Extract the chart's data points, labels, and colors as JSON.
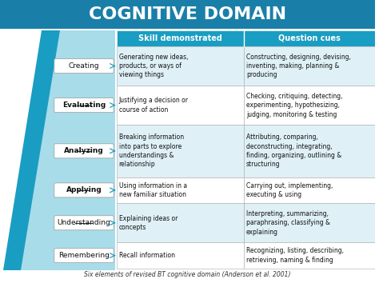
{
  "title": "COGNITIVE DOMAIN",
  "title_bg": "#1a7fa8",
  "title_color": "#ffffff",
  "header_bg": "#1a9dc2",
  "header_color": "#ffffff",
  "header_col1": "Skill demonstrated",
  "header_col2": "Question cues",
  "pyramid_color_dark": "#1a9dc2",
  "pyramid_color_light": "#a8dce9",
  "row_bg_even": "#dff0f7",
  "row_bg_odd": "#ffffff",
  "border_color": "#aaaaaa",
  "footer_text": "Six elements of revised BT cognitive domain (Anderson et al. 2001)",
  "levels": [
    {
      "name": "Creating",
      "underline": false,
      "bold": false,
      "skill": "Generating new ideas,\nproducts, or ways of\nviewing things",
      "cues": "Constructing, designing, devising,\ninventing, making, planning &\nproducing"
    },
    {
      "name": "Evaluating",
      "underline": true,
      "bold": true,
      "skill": "Justifying a decision or\ncourse of action",
      "cues": "Checking, critiquing, detecting,\nexperimenting, hypothesizing,\njudging, monitoring & testing"
    },
    {
      "name": "Analyzing",
      "underline": true,
      "bold": true,
      "skill": "Breaking information\ninto parts to explore\nunderstandings &\nrelationship",
      "cues": "Attributing, comparing,\ndeconstructing, integrating,\nfinding, organizing, outlining &\nstructuring"
    },
    {
      "name": "Applying",
      "underline": true,
      "bold": true,
      "skill": "Using information in a\nnew familiar situation",
      "cues": "Carrying out, implementing,\nexecuting & using"
    },
    {
      "name": "Understanding",
      "underline": true,
      "bold": false,
      "skill": "Explaining ideas or\nconcepts",
      "cues": "Interpreting, summarizing,\nparaphrasing, classifying &\nexplaining"
    },
    {
      "name": "Remembering",
      "underline": false,
      "bold": false,
      "skill": "Recall information",
      "cues": "Recognizing, listing, describing,\nretrieving, naming & finding"
    }
  ]
}
